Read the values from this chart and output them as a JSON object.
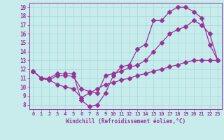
{
  "xlabel": "Windchill (Refroidissement éolien,°C)",
  "bg_color": "#c8ecec",
  "line_color": "#993399",
  "grid_color": "#aadddd",
  "line1_x": [
    0,
    1,
    2,
    3,
    4,
    5,
    6,
    7,
    8,
    9,
    10,
    11,
    12,
    13,
    14,
    15,
    16,
    17,
    18,
    19,
    20,
    21,
    22,
    23
  ],
  "line1_y": [
    11.8,
    11.0,
    11.0,
    11.5,
    11.5,
    11.5,
    8.5,
    7.8,
    8.0,
    9.3,
    11.3,
    12.3,
    12.5,
    14.3,
    14.8,
    17.5,
    17.5,
    18.5,
    19.0,
    19.0,
    18.5,
    17.8,
    14.8,
    13.0
  ],
  "line2_x": [
    0,
    1,
    2,
    3,
    4,
    5,
    6,
    7,
    8,
    9,
    10,
    11,
    12,
    13,
    14,
    15,
    16,
    17,
    18,
    19,
    20,
    21,
    22,
    23
  ],
  "line2_y": [
    11.8,
    11.0,
    10.8,
    11.3,
    11.3,
    11.2,
    9.8,
    9.5,
    9.3,
    11.3,
    11.5,
    11.8,
    12.2,
    12.5,
    13.0,
    14.0,
    15.0,
    16.0,
    16.5,
    16.8,
    17.5,
    17.0,
    16.0,
    13.0
  ],
  "line3_x": [
    0,
    1,
    2,
    3,
    4,
    5,
    6,
    7,
    8,
    9,
    10,
    11,
    12,
    13,
    14,
    15,
    16,
    17,
    18,
    19,
    20,
    21,
    22,
    23
  ],
  "line3_y": [
    11.8,
    11.0,
    10.8,
    10.3,
    10.0,
    9.8,
    8.8,
    9.3,
    9.8,
    10.3,
    10.5,
    10.8,
    11.0,
    11.3,
    11.5,
    11.8,
    12.0,
    12.3,
    12.5,
    12.8,
    13.0,
    13.0,
    13.0,
    13.0
  ],
  "xlim": [
    -0.5,
    23.5
  ],
  "ylim": [
    7.5,
    19.5
  ],
  "yticks": [
    8,
    9,
    10,
    11,
    12,
    13,
    14,
    15,
    16,
    17,
    18,
    19
  ],
  "xticks": [
    0,
    1,
    2,
    3,
    4,
    5,
    6,
    7,
    8,
    9,
    10,
    11,
    12,
    13,
    14,
    15,
    16,
    17,
    18,
    19,
    20,
    21,
    22,
    23
  ]
}
